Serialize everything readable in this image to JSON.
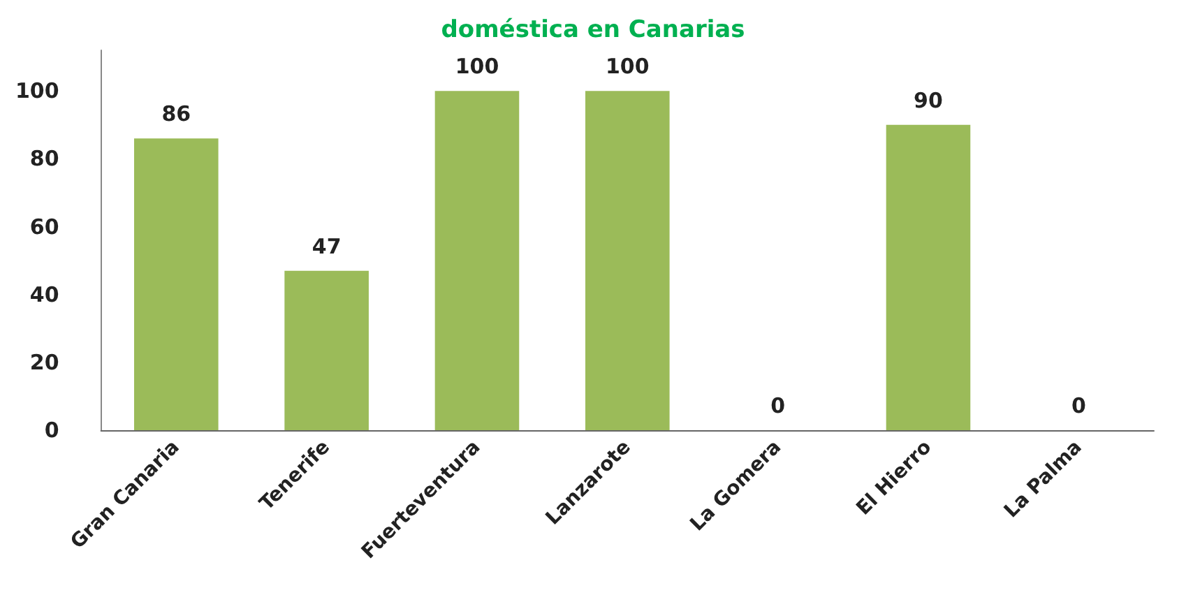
{
  "chart_data": {
    "type": "bar",
    "title": "doméstica en Canarias",
    "categories": [
      "Gran Canaria",
      "Tenerife",
      "Fuerteventura",
      "Lanzarote",
      "La Gomera",
      "El Hierro",
      "La Palma"
    ],
    "values": [
      86,
      47,
      100,
      100,
      0,
      90,
      0
    ],
    "color": "#9bbb59",
    "ylim": [
      0,
      112
    ],
    "yticks": [
      0,
      20,
      40,
      60,
      80,
      100
    ],
    "grid": false,
    "data_labels": true
  }
}
